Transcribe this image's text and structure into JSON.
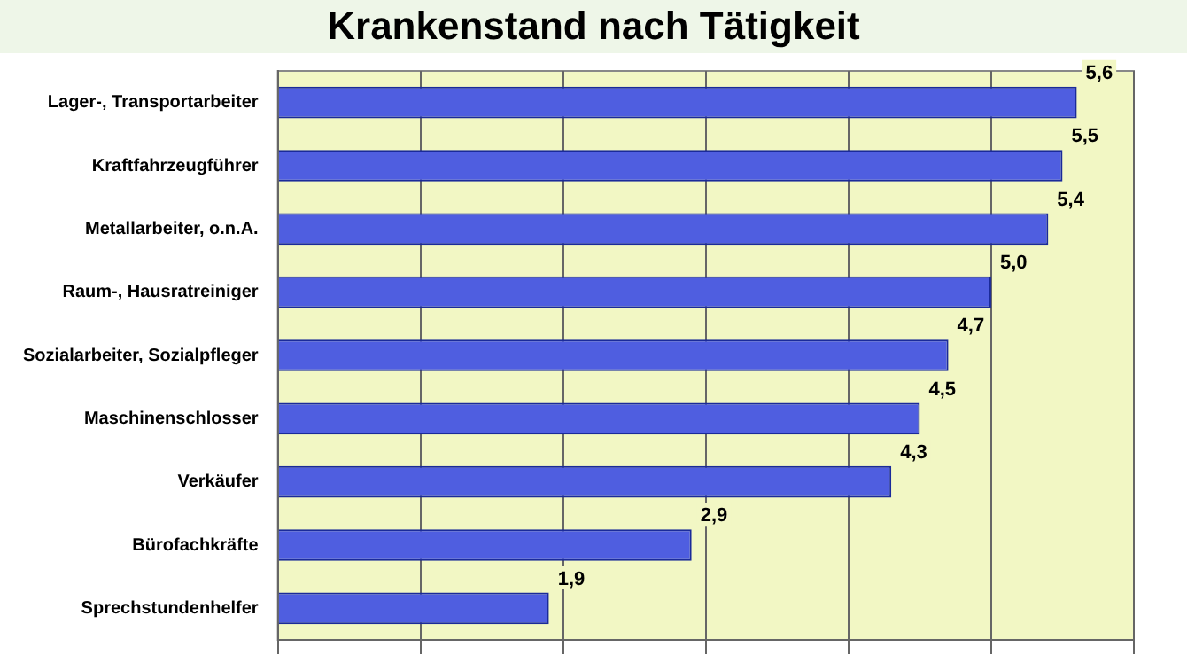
{
  "chart_data": {
    "type": "bar",
    "orientation": "horizontal",
    "title": "Krankenstand nach Tätigkeit",
    "categories": [
      "Lager-, Transportarbeiter",
      "Kraftfahrzeugführer",
      "Metallarbeiter, o.n.A.",
      "Raum-, Hausratreiniger",
      "Sozialarbeiter, Sozialpfleger",
      "Maschinenschlosser",
      "Verkäufer",
      "Bürofachkräfte",
      "Sprechstundenhelfer"
    ],
    "values": [
      5.6,
      5.5,
      5.4,
      5.0,
      4.7,
      4.5,
      4.3,
      2.9,
      1.9
    ],
    "value_labels": [
      "5,6",
      "5,5",
      "5,4",
      "5,0",
      "4,7",
      "4,5",
      "4,3",
      "2,9",
      "1,9"
    ],
    "color": "#4f5ee0",
    "grid": "x",
    "tick_labels": "y"
  }
}
